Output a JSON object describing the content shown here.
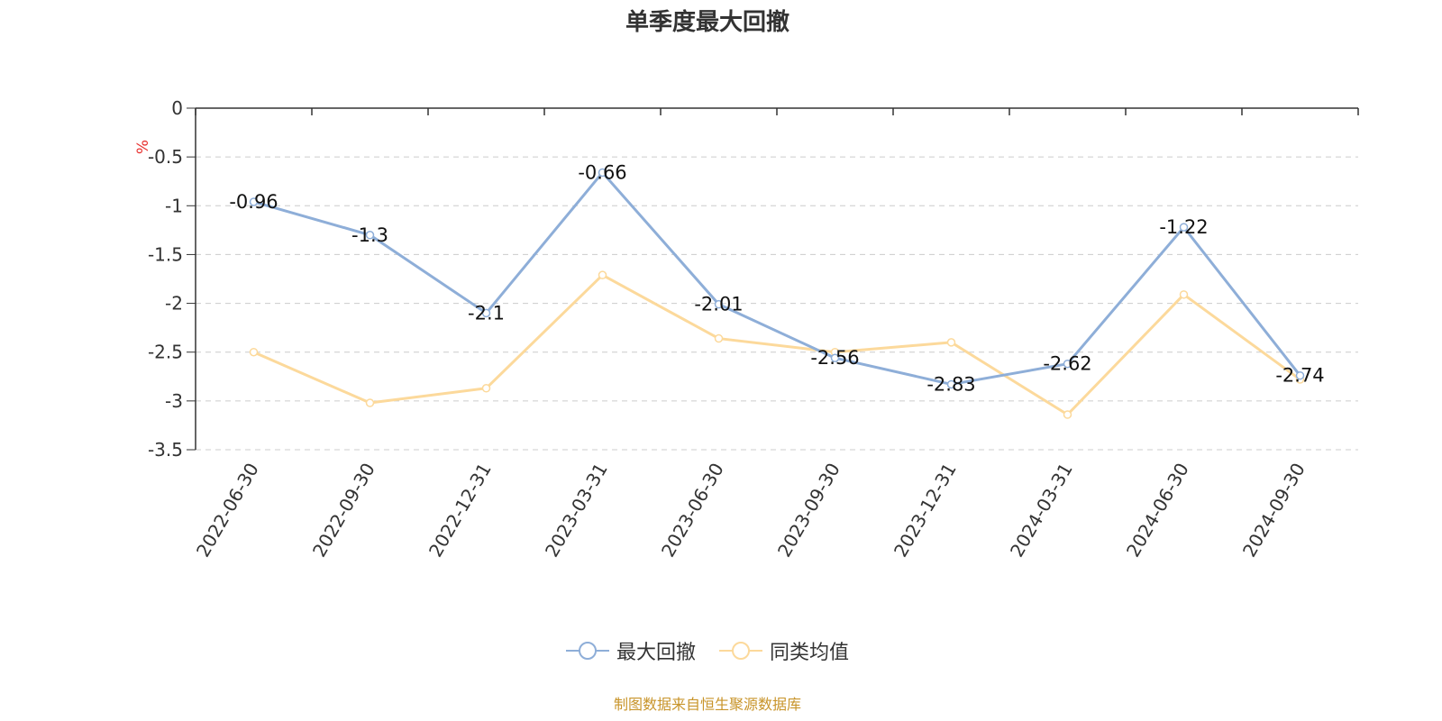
{
  "chart_data": {
    "type": "line",
    "title": "单季度最大回撤",
    "ylabel": "%",
    "ylim": [
      -3.5,
      0
    ],
    "ytick_values": [
      0,
      -0.5,
      -1,
      -1.5,
      -2,
      -2.5,
      -3,
      -3.5
    ],
    "ytick_labels": [
      "0",
      "-0.5",
      "-1",
      "-1.5",
      "-2",
      "-2.5",
      "-3",
      "-3.5"
    ],
    "grid": true,
    "legend_position": "bottom",
    "categories": [
      "2022-06-30",
      "2022-09-30",
      "2022-12-31",
      "2023-03-31",
      "2023-06-30",
      "2023-09-30",
      "2023-12-31",
      "2024-03-31",
      "2024-06-30",
      "2024-09-30"
    ],
    "series": [
      {
        "name": "最大回撤",
        "color": "#8eaed8",
        "values": [
          -0.96,
          -1.3,
          -2.1,
          -0.66,
          -2.01,
          -2.56,
          -2.83,
          -2.62,
          -1.22,
          -2.74
        ],
        "data_labels": [
          "-0.96",
          "-1.3",
          "-2.1",
          "-0.66",
          "-2.01",
          "-2.56",
          "-2.83",
          "-2.62",
          "-1.22",
          "-2.74"
        ]
      },
      {
        "name": "同类均值",
        "color": "#fcd99b",
        "values": [
          -2.5,
          -3.02,
          -2.87,
          -1.71,
          -2.36,
          -2.5,
          -2.4,
          -3.14,
          -1.91,
          -2.78
        ]
      }
    ]
  },
  "legend": {
    "items": [
      {
        "label": "最大回撤",
        "color": "#8eaed8"
      },
      {
        "label": "同类均值",
        "color": "#fcd99b"
      }
    ]
  },
  "footer": {
    "source": "制图数据来自恒生聚源数据库",
    "color": "#c8942a"
  },
  "axis_color": "#333333",
  "ylabel_color": "#e8312f",
  "grid_color": "#cccccc"
}
